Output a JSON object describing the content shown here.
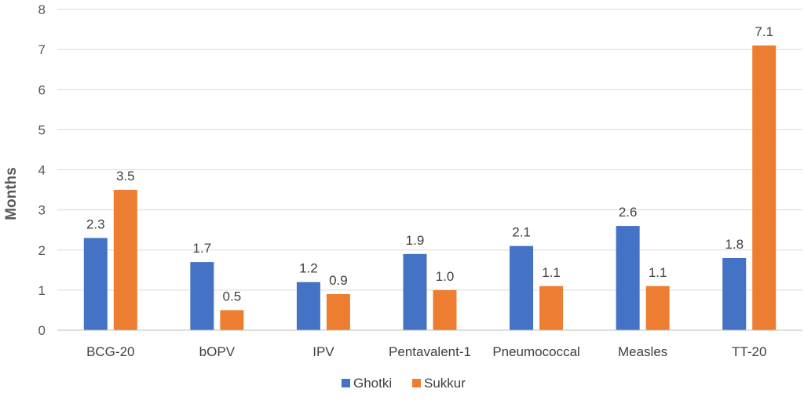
{
  "chart_data": {
    "type": "bar",
    "title": "",
    "xlabel": "",
    "ylabel": "Months",
    "ylim": [
      0,
      8
    ],
    "yticks": [
      "0",
      "1",
      "2",
      "3",
      "4",
      "5",
      "6",
      "7",
      "8"
    ],
    "grid": true,
    "legend_position": "bottom",
    "categories": [
      "BCG-20",
      "bOPV",
      "IPV",
      "Pentavalent-1",
      "Pneumococcal",
      "Measles",
      "TT-20"
    ],
    "series": [
      {
        "name": "Ghotki",
        "color": "#4472C4",
        "values": [
          2.3,
          1.7,
          1.2,
          1.9,
          2.1,
          2.6,
          1.8
        ],
        "labels": [
          "2.3",
          "1.7",
          "1.2",
          "1.9",
          "2.1",
          "2.6",
          "1.8"
        ]
      },
      {
        "name": "Sukkur",
        "color": "#ED7D31",
        "values": [
          3.5,
          0.5,
          0.9,
          1.0,
          1.1,
          1.1,
          7.1
        ],
        "labels": [
          "3.5",
          "0.5",
          "0.9",
          "1.0",
          "1.1",
          "1.1",
          "7.1"
        ]
      }
    ]
  }
}
